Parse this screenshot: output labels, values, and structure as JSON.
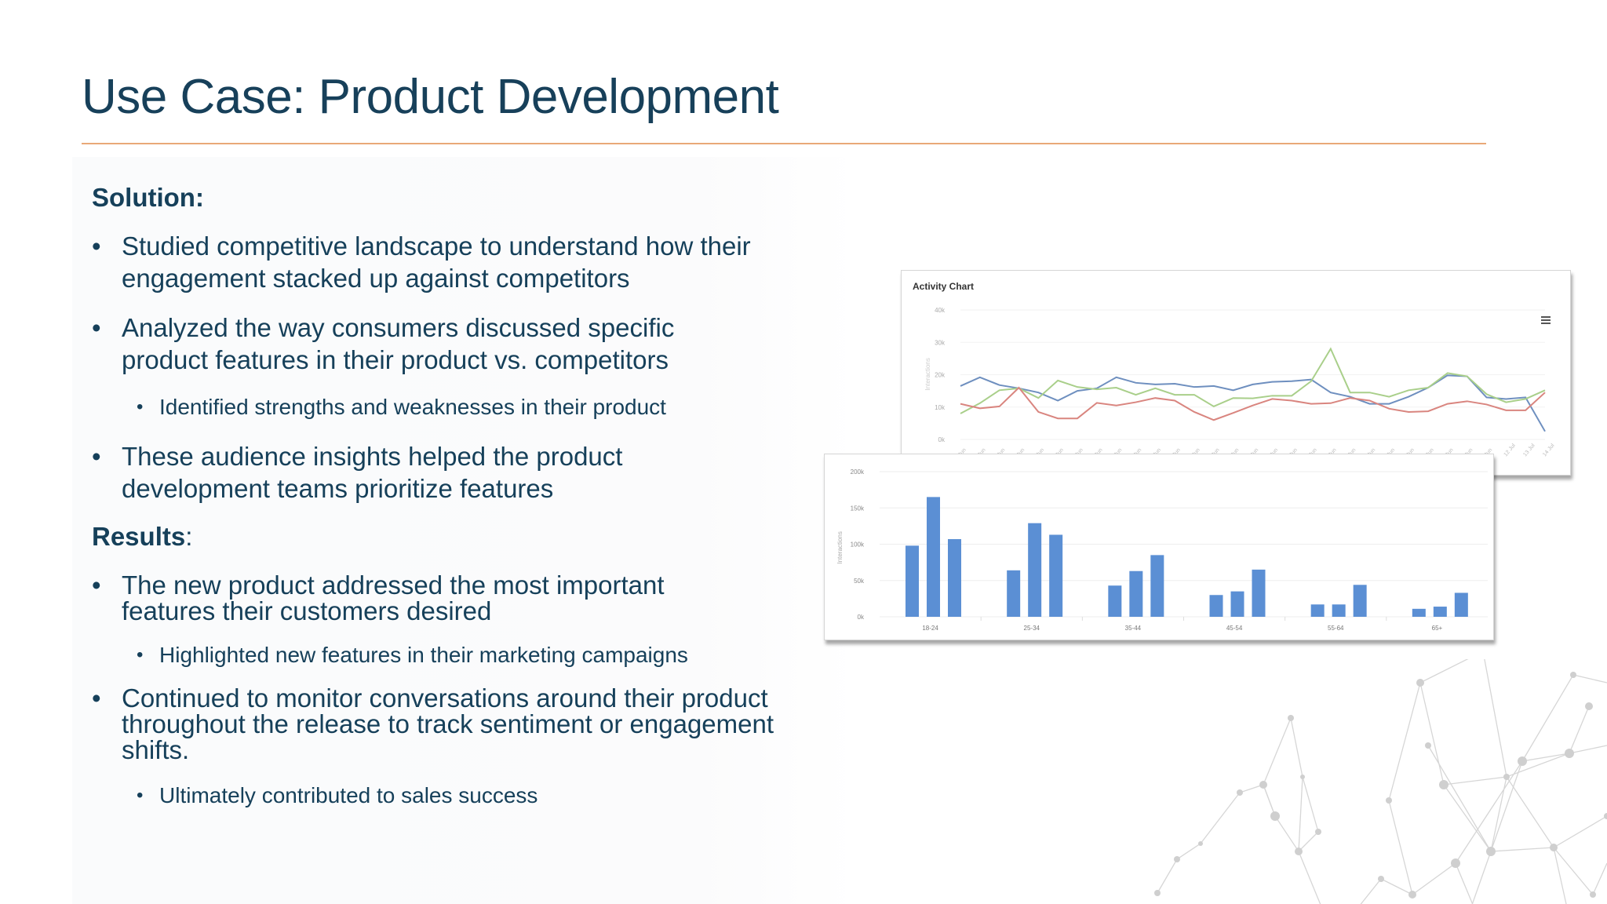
{
  "slide": {
    "title": "Use Case: Product Development",
    "accent_color": "#e9a978",
    "text_color": "#16405a"
  },
  "solution": {
    "heading": "Solution:",
    "items": [
      {
        "text": "Studied competitive landscape to understand how their engagement stacked up against competitors",
        "sub": []
      },
      {
        "text": "Analyzed the way consumers discussed specific product features in their product vs. competitors",
        "sub": [
          "Identified strengths and weaknesses in their product"
        ]
      },
      {
        "text": "These audience insights helped the product development teams prioritize features",
        "sub": []
      }
    ]
  },
  "results": {
    "heading": "Results",
    "heading_suffix": ":",
    "items": [
      {
        "text": "The new product addressed the most important features their customers desired",
        "sub": [
          "Highlighted new features in their marketing campaigns"
        ]
      },
      {
        "text": "Continued to monitor conversations around their product throughout the release to track sentiment or engagement shifts.",
        "sub": [
          "Ultimately contributed to sales success"
        ]
      }
    ]
  },
  "chart_data": [
    {
      "type": "line",
      "title": "Activity Chart",
      "ylabel": "Interactions",
      "ylim": [
        0,
        40000
      ],
      "yticks": [
        "0k",
        "10k",
        "20k",
        "30k",
        "40k"
      ],
      "menu_icon": "hamburger-menu-icon",
      "x_count": 31,
      "xlabel_note": "rotated date labels (Jun…Jul), illegible",
      "series": [
        {
          "name": "blue",
          "color": "#6e8fbf",
          "values": [
            16500,
            19200,
            16800,
            15800,
            14500,
            12000,
            15000,
            15800,
            19200,
            17500,
            17000,
            17200,
            16200,
            16500,
            15200,
            17000,
            17800,
            18000,
            18500,
            14500,
            13200,
            11000,
            11000,
            13200,
            16000,
            19800,
            19500,
            13000,
            12500,
            13000,
            2500
          ]
        },
        {
          "name": "green",
          "color": "#a9cf8a",
          "values": [
            8000,
            11200,
            15200,
            15800,
            12800,
            18200,
            16200,
            15500,
            16000,
            13800,
            15800,
            13800,
            13800,
            10200,
            12800,
            12700,
            13500,
            13500,
            18000,
            28000,
            14500,
            14500,
            13200,
            15200,
            16000,
            20500,
            19500,
            14000,
            11500,
            12500,
            15200
          ]
        },
        {
          "name": "red",
          "color": "#d9857f",
          "values": [
            11000,
            9600,
            10200,
            16000,
            8500,
            6500,
            6500,
            11300,
            10500,
            11500,
            12800,
            12000,
            8500,
            6000,
            8200,
            10500,
            12500,
            12000,
            11000,
            11200,
            12800,
            12000,
            9500,
            8500,
            8700,
            11000,
            11800,
            10800,
            9000,
            9000,
            14500
          ]
        }
      ]
    },
    {
      "type": "bar",
      "ylabel": "Interactions",
      "ylim": [
        0,
        200000
      ],
      "yticks": [
        "0k",
        "50k",
        "100k",
        "150k",
        "200k"
      ],
      "categories": [
        "18-24",
        "25-34",
        "35-44",
        "45-54",
        "55-64",
        "65+"
      ],
      "color": "#5b8fd4",
      "series": [
        {
          "name": "series-1",
          "values": [
            98000,
            64000,
            43000,
            30000,
            17000,
            11000
          ]
        },
        {
          "name": "series-2",
          "values": [
            165000,
            129000,
            63000,
            35000,
            17000,
            14000
          ]
        },
        {
          "name": "series-3",
          "values": [
            107000,
            113000,
            85000,
            65000,
            44000,
            33000
          ]
        }
      ]
    }
  ]
}
